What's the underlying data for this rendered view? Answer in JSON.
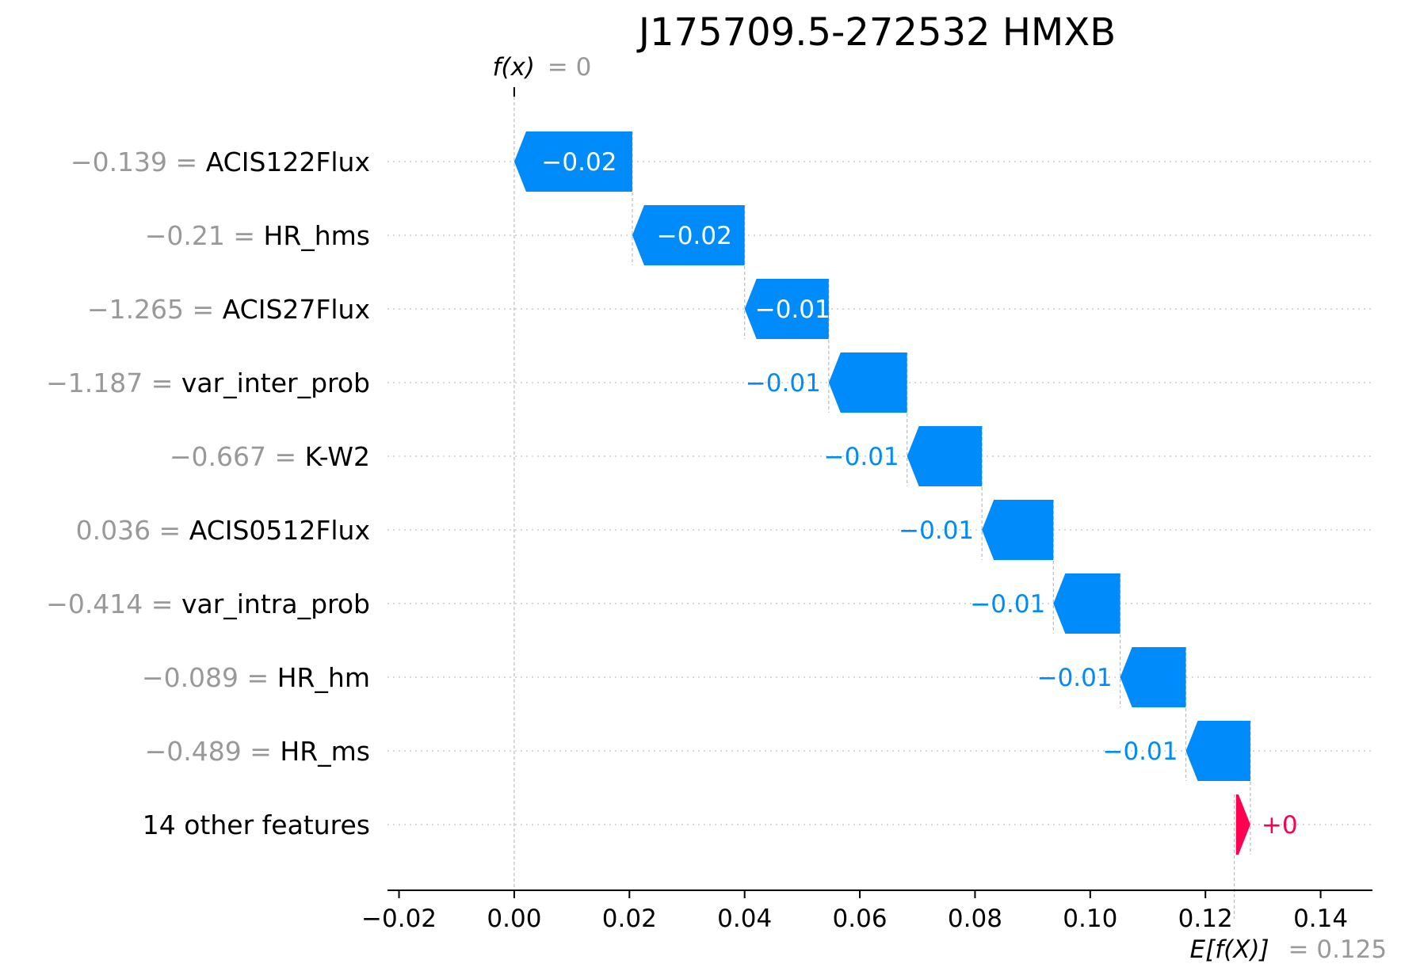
{
  "chart_data": {
    "type": "waterfall",
    "title": "J175709.5-272532 HMXB",
    "fx_label": {
      "name": "f(x)",
      "eq": "= 0"
    },
    "efx_label": {
      "name": "E[f(X)]",
      "eq": "= 0.125"
    },
    "base_value": 0.125,
    "output_value": 0,
    "xlim": [
      -0.022,
      0.149
    ],
    "x_ticks": [
      -0.02,
      0.0,
      0.02,
      0.04,
      0.06,
      0.08,
      0.1,
      0.12,
      0.14
    ],
    "x_tick_labels": [
      "−0.02",
      "0.00",
      "0.02",
      "0.04",
      "0.06",
      "0.08",
      "0.10",
      "0.12",
      "0.14"
    ],
    "grid": "dotted horizontal",
    "colors": {
      "negative": "#008bfb",
      "positive": "#ff0051",
      "value_text": "#999999"
    },
    "features": [
      {
        "value": "−0.139",
        "name": "ACIS122Flux",
        "start": 0.0205,
        "end": 0.0,
        "label": "−0.02"
      },
      {
        "value": "−0.21",
        "name": "HR_hms",
        "start": 0.04,
        "end": 0.0205,
        "label": "−0.02"
      },
      {
        "value": "−1.265",
        "name": "ACIS27Flux",
        "start": 0.0546,
        "end": 0.04,
        "label": "−0.01"
      },
      {
        "value": "−1.187",
        "name": "var_inter_prob",
        "start": 0.0682,
        "end": 0.0546,
        "label": "−0.01"
      },
      {
        "value": "−0.667",
        "name": "K-W2",
        "start": 0.0812,
        "end": 0.0682,
        "label": "−0.01"
      },
      {
        "value": "0.036",
        "name": "ACIS0512Flux",
        "start": 0.0936,
        "end": 0.0812,
        "label": "−0.01"
      },
      {
        "value": "−0.414",
        "name": "var_intra_prob",
        "start": 0.1052,
        "end": 0.0936,
        "label": "−0.01"
      },
      {
        "value": "−0.089",
        "name": "HR_hm",
        "start": 0.1166,
        "end": 0.1052,
        "label": "−0.01"
      },
      {
        "value": "−0.489",
        "name": "HR_ms",
        "start": 0.1278,
        "end": 0.1166,
        "label": "−0.01"
      },
      {
        "value": "",
        "name": "14 other features",
        "start": 0.1253,
        "end": 0.1278,
        "label": "+0"
      }
    ]
  }
}
